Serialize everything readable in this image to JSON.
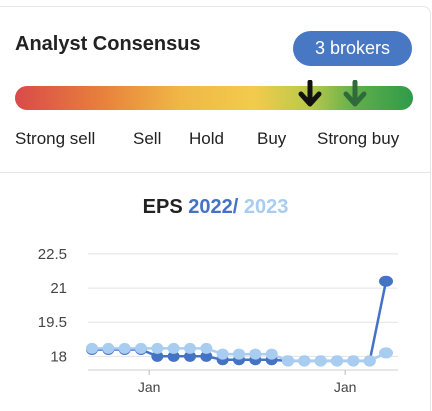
{
  "consensus": {
    "title": "Analyst Consensus",
    "brokers_badge": "3 brokers",
    "scale_labels": [
      "Strong sell",
      "Sell",
      "Hold",
      "Buy",
      "Strong buy"
    ],
    "colors": {
      "badge": "#4877c3",
      "current_arrow": "#111111",
      "previous_arrow": "#2f6b3a"
    },
    "indicators": [
      {
        "name": "current-consensus",
        "level": 0.74,
        "color": "#111111"
      },
      {
        "name": "previous-consensus",
        "level": 0.855,
        "color": "#2f6b3a"
      }
    ]
  },
  "chart_title": {
    "label": "EPS",
    "year_a": "2022",
    "separator": "/",
    "year_b": "2023"
  },
  "chart_data": {
    "type": "line",
    "title": "EPS 2022 / 2023",
    "xlabel": "",
    "ylabel": "",
    "y_ticks": [
      "22.5",
      "21",
      "19.5",
      "18"
    ],
    "y_tick_values": [
      22.5,
      21,
      19.5,
      18
    ],
    "ylim": [
      17.4,
      23.2
    ],
    "x_tick_labels": [
      "Jan",
      "Jan"
    ],
    "x_tick_index": [
      3.5,
      15.5
    ],
    "grid": true,
    "series": [
      {
        "name": "2022",
        "color": "#4472c4",
        "values": [
          18.3,
          18.3,
          18.3,
          18.3,
          18.0,
          18.0,
          18.0,
          18.0,
          17.85,
          17.85,
          17.85,
          17.85,
          17.8,
          17.8,
          17.8,
          17.8,
          17.8,
          17.8,
          21.3
        ]
      },
      {
        "name": "2023",
        "color": "#a9cdf1",
        "values": [
          18.35,
          18.35,
          18.35,
          18.35,
          18.35,
          18.35,
          18.35,
          18.35,
          18.1,
          18.1,
          18.1,
          18.1,
          17.8,
          17.8,
          17.8,
          17.8,
          17.8,
          17.8,
          18.15
        ]
      }
    ]
  }
}
